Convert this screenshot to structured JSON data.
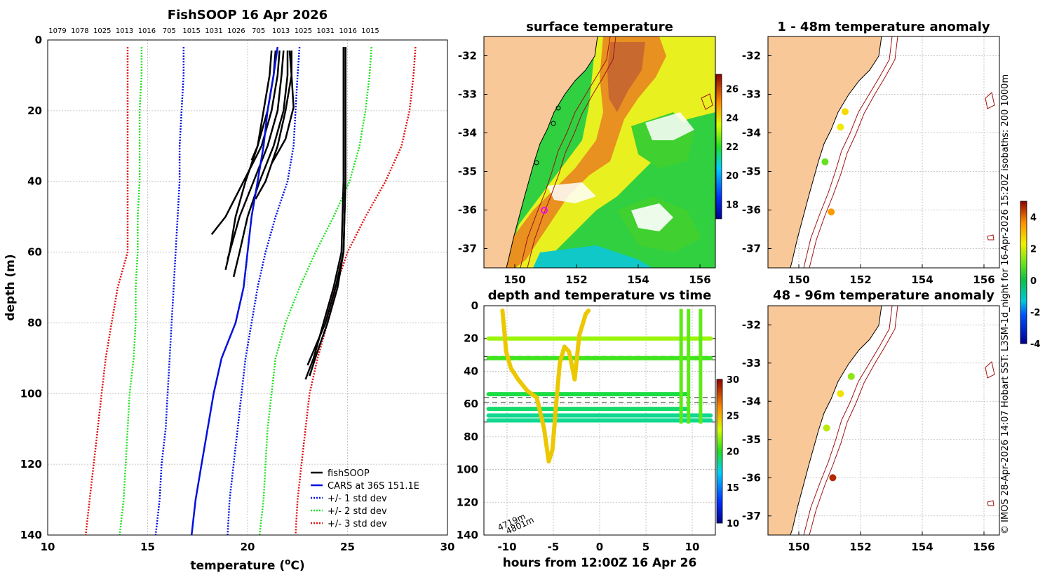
{
  "colors": {
    "land": "#f8c898",
    "black": "#000000",
    "cars": "#0010e0",
    "sd1": "#0010e0",
    "sd2": "#20e020",
    "sd3": "#e01010",
    "isobath": "#b01010"
  },
  "credit": "© IMOS 28-Apr-2026 14:07 Hobart SST: L3SM-1d_night for 16-Apr-2026 15:20Z isobaths: 200  1000m",
  "chart_data": [
    {
      "id": "profile",
      "type": "line",
      "title": "FishSOOP 16 Apr 2026",
      "xlabel": "temperature (",
      "xlabel_sup": "o",
      "xlabel_tail": "C)",
      "ylabel": "depth (m)",
      "xlim": [
        10,
        30
      ],
      "ylim": [
        0,
        140
      ],
      "xticks": [
        10,
        15,
        20,
        25,
        30
      ],
      "yticks": [
        0,
        20,
        40,
        60,
        80,
        100,
        120,
        140
      ],
      "top_labels": [
        "1079",
        "1078",
        "1025",
        "1013",
        "1016",
        "705",
        "1015",
        "1031",
        "1026",
        "705",
        "1013",
        "1025",
        "1031",
        "1016",
        "1015"
      ],
      "legend": [
        "fishSOOP",
        "CARS at 36S 151.1E",
        "+/- 1 std dev",
        "+/- 2 std dev",
        "+/- 3 std dev"
      ],
      "cars": {
        "depth": [
          2,
          10,
          20,
          30,
          40,
          50,
          60,
          70,
          80,
          90,
          100,
          110,
          120,
          130,
          140
        ],
        "temp": [
          21.5,
          21.3,
          21.0,
          20.8,
          20.5,
          20.2,
          20.0,
          19.8,
          19.4,
          18.7,
          18.3,
          18.0,
          17.7,
          17.4,
          17.2
        ]
      },
      "sd1": {
        "lo": [
          16.8,
          16.8,
          16.7,
          16.6,
          16.6,
          16.5,
          16.4,
          16.3,
          16.2,
          16.1,
          16.0,
          15.9,
          15.7,
          15.6,
          15.4
        ],
        "hi": [
          22.6,
          22.5,
          22.4,
          22.3,
          22.0,
          21.4,
          20.9,
          20.5,
          20.2,
          19.9,
          19.7,
          19.5,
          19.3,
          19.1,
          19.0
        ]
      },
      "sd2": {
        "lo": [
          14.7,
          14.7,
          14.6,
          14.6,
          14.6,
          14.5,
          14.5,
          14.4,
          14.4,
          14.3,
          14.1,
          14.0,
          13.9,
          13.8,
          13.6
        ],
        "hi": [
          26.2,
          26.1,
          25.9,
          25.6,
          25.1,
          24.3,
          23.4,
          22.6,
          21.9,
          21.4,
          21.2,
          21.0,
          20.9,
          20.8,
          20.6
        ]
      },
      "sd3": {
        "lo": [
          14.5,
          14.4,
          14.4,
          14.4,
          14.4,
          14.3,
          14.0,
          13.5,
          13.2,
          12.9,
          12.7,
          12.5,
          12.3,
          12.1,
          11.9
        ],
        "hi": [
          28.4,
          28.3,
          28.1,
          27.7,
          26.9,
          25.9,
          25.0,
          24.4,
          24.0,
          23.5,
          23.1,
          22.9,
          22.7,
          22.5,
          22.4
        ],
        "lo_fixed": [
          14.0,
          14.0,
          14.0,
          14.0,
          14.0,
          14.0,
          14.0,
          13.5,
          13.2,
          12.9,
          12.7,
          12.5,
          12.3,
          12.1,
          11.9
        ]
      },
      "fishsoop_casts": [
        {
          "depth": [
            3,
            10,
            20,
            30,
            40,
            50,
            55
          ],
          "temp": [
            21.6,
            21.5,
            21.2,
            20.7,
            19.8,
            18.9,
            18.2
          ]
        },
        {
          "depth": [
            3,
            10,
            20,
            30,
            40,
            50,
            60,
            62
          ],
          "temp": [
            21.8,
            21.7,
            21.5,
            21.0,
            20.3,
            19.6,
            19.1,
            19.0
          ]
        },
        {
          "depth": [
            3,
            10,
            20,
            30,
            40,
            50,
            60,
            67
          ],
          "temp": [
            22.0,
            22.0,
            21.8,
            21.3,
            20.6,
            20.0,
            19.6,
            19.3
          ]
        },
        {
          "depth": [
            3,
            10,
            20,
            30,
            40,
            50,
            60,
            65
          ],
          "temp": [
            21.4,
            21.3,
            21.0,
            20.5,
            19.9,
            19.4,
            19.1,
            18.9
          ]
        },
        {
          "depth": [
            3,
            10,
            19,
            28,
            35
          ],
          "temp": [
            22.1,
            22.2,
            22.3,
            21.9,
            21.2
          ]
        },
        {
          "depth": [
            3,
            10,
            20,
            30,
            34
          ],
          "temp": [
            21.2,
            21.1,
            20.8,
            20.5,
            20.2
          ]
        },
        {
          "depth": [
            3,
            10,
            20,
            30,
            40,
            45
          ],
          "temp": [
            22.2,
            22.2,
            21.9,
            21.5,
            20.9,
            20.4
          ]
        },
        {
          "depth": [
            2,
            20,
            40,
            60,
            70,
            80,
            88,
            95
          ],
          "temp": [
            24.9,
            24.9,
            24.9,
            24.8,
            24.5,
            24.0,
            23.5,
            23.1
          ]
        },
        {
          "depth": [
            2,
            20,
            40,
            60,
            70,
            80,
            90,
            96
          ],
          "temp": [
            24.8,
            24.8,
            24.8,
            24.7,
            24.3,
            23.8,
            23.3,
            22.9
          ]
        },
        {
          "depth": [
            2,
            20,
            40,
            60,
            70,
            80,
            92
          ],
          "temp": [
            24.9,
            24.9,
            24.9,
            24.8,
            24.4,
            23.9,
            23.0
          ]
        }
      ]
    },
    {
      "id": "sst",
      "type": "heatmap",
      "title": "surface temperature",
      "xlim": [
        149.0,
        156.5
      ],
      "ylim": [
        -37.5,
        -31.5
      ],
      "xticks": [
        150,
        152,
        154,
        156
      ],
      "yticks": [
        -32,
        -33,
        -34,
        -35,
        -36,
        -37
      ],
      "colorbar": {
        "min": 17,
        "max": 27,
        "ticks": [
          18,
          20,
          22,
          24,
          26
        ]
      }
    },
    {
      "id": "timeseries",
      "type": "scatter",
      "title": "depth and temperature vs time",
      "xlabel": "hours from 12:00Z 16 Apr 26",
      "xlim": [
        -12.5,
        12.5
      ],
      "ylim": [
        0,
        140
      ],
      "xticks": [
        -10,
        -5,
        0,
        5,
        10
      ],
      "yticks": [
        0,
        20,
        40,
        60,
        80,
        100,
        120,
        140
      ],
      "colorbar": {
        "min": 10,
        "max": 30,
        "ticks": [
          10,
          15,
          20,
          25,
          30
        ]
      },
      "dashed_depths": [
        20,
        31,
        33,
        56,
        59,
        71
      ],
      "bands": [
        {
          "depth": 20,
          "t0": -12,
          "t1": 12,
          "temp": 22
        },
        {
          "depth": 32,
          "t0": -12,
          "t1": 12,
          "temp": 20.5
        },
        {
          "depth": 54,
          "t0": -12,
          "t1": 9.5,
          "temp": 19.5
        },
        {
          "depth": 63,
          "t0": -12,
          "t1": 9.5,
          "temp": 19
        },
        {
          "depth": 67,
          "t0": -12,
          "t1": 12,
          "temp": 18.5
        },
        {
          "depth": 70,
          "t0": -12,
          "t1": 12,
          "temp": 18.5
        }
      ],
      "deep_track": {
        "t": [
          -10.5,
          -10.3,
          -10.1,
          -9.6,
          -8.8,
          -7.8,
          -6.8,
          -6.0,
          -5.5,
          -5.1,
          -4.7,
          -4.3,
          -3.8,
          -3.3,
          -2.7,
          -2.2,
          -1.5,
          -1.2
        ],
        "depth": [
          3,
          15,
          28,
          38,
          45,
          52,
          56,
          75,
          95,
          88,
          60,
          35,
          25,
          28,
          45,
          18,
          5,
          3
        ],
        "temp": 24.5
      },
      "annotations": [
        "4719m",
        "4801m"
      ]
    },
    {
      "id": "anom_top",
      "type": "scatter",
      "title": "1 - 48m temperature anomaly",
      "xlim": [
        149.0,
        156.5
      ],
      "ylim": [
        -37.5,
        -31.5
      ],
      "xticks": [
        150,
        152,
        154,
        156
      ],
      "yticks": [
        -32,
        -33,
        -34,
        -35,
        -36,
        -37
      ],
      "points": [
        {
          "lon": 151.5,
          "lat": -33.45,
          "anom": 2.6
        },
        {
          "lon": 151.35,
          "lat": -33.85,
          "anom": 2.4
        },
        {
          "lon": 150.85,
          "lat": -34.75,
          "anom": 1.0
        },
        {
          "lon": 151.05,
          "lat": -36.05,
          "anom": 3.5
        }
      ]
    },
    {
      "id": "anom_bot",
      "type": "scatter",
      "title": "48 - 96m temperature anomaly",
      "xlim": [
        149.0,
        156.5
      ],
      "ylim": [
        -37.5,
        -31.5
      ],
      "xticks": [
        150,
        152,
        154,
        156
      ],
      "yticks": [
        -32,
        -33,
        -34,
        -35,
        -36,
        -37
      ],
      "points": [
        {
          "lon": 151.7,
          "lat": -33.35,
          "anom": 1.4
        },
        {
          "lon": 151.35,
          "lat": -33.8,
          "anom": 2.5
        },
        {
          "lon": 150.9,
          "lat": -34.7,
          "anom": 1.8
        },
        {
          "lon": 151.1,
          "lat": -36.0,
          "anom": 4.6
        }
      ],
      "colorbar": {
        "min": -4,
        "max": 5,
        "ticks": [
          -4,
          -2,
          0,
          2,
          4
        ]
      }
    }
  ]
}
